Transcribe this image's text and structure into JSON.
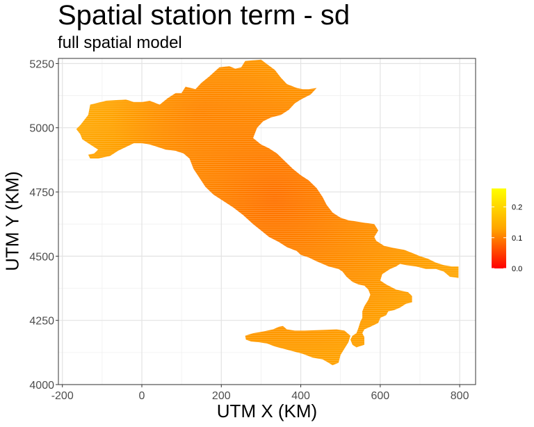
{
  "chart_data": {
    "type": "heatmap",
    "title": "Spatial station term - sd",
    "subtitle": "full spatial model",
    "xlabel": "UTM X (KM)",
    "ylabel": "UTM Y (KM)",
    "xlim": [
      -210,
      840
    ],
    "ylim": [
      4000,
      5270
    ],
    "x_ticks": [
      "-200",
      "0",
      "200",
      "400",
      "600",
      "800"
    ],
    "y_ticks": [
      "4000",
      "4250",
      "4500",
      "4750",
      "5000",
      "5250"
    ],
    "grid": true,
    "legend": {
      "position": "right",
      "range": [
        0,
        0.26
      ],
      "ticks": [
        "0.0",
        "0.1",
        "0.2"
      ],
      "colors": [
        "#ff0000",
        "#ffa500",
        "#ffff00"
      ]
    },
    "regions": [
      {
        "name": "mainland",
        "typical_value": 0.14,
        "outline": [
          [
            -155,
            5010
          ],
          [
            -135,
            5050
          ],
          [
            -130,
            5090
          ],
          [
            -90,
            5105
          ],
          [
            -40,
            5110
          ],
          [
            -20,
            5100
          ],
          [
            0,
            5100
          ],
          [
            20,
            5105
          ],
          [
            45,
            5090
          ],
          [
            65,
            5115
          ],
          [
            85,
            5135
          ],
          [
            100,
            5135
          ],
          [
            110,
            5160
          ],
          [
            135,
            5150
          ],
          [
            150,
            5175
          ],
          [
            170,
            5200
          ],
          [
            195,
            5235
          ],
          [
            220,
            5240
          ],
          [
            235,
            5230
          ],
          [
            250,
            5235
          ],
          [
            260,
            5260
          ],
          [
            300,
            5265
          ],
          [
            335,
            5225
          ],
          [
            350,
            5195
          ],
          [
            365,
            5170
          ],
          [
            390,
            5155
          ],
          [
            405,
            5150
          ],
          [
            420,
            5150
          ],
          [
            440,
            5155
          ],
          [
            425,
            5130
          ],
          [
            400,
            5110
          ],
          [
            385,
            5095
          ],
          [
            370,
            5070
          ],
          [
            350,
            5050
          ],
          [
            325,
            5040
          ],
          [
            305,
            5025
          ],
          [
            290,
            5000
          ],
          [
            280,
            4960
          ],
          [
            300,
            4935
          ],
          [
            320,
            4920
          ],
          [
            340,
            4900
          ],
          [
            360,
            4870
          ],
          [
            380,
            4840
          ],
          [
            400,
            4815
          ],
          [
            420,
            4795
          ],
          [
            440,
            4765
          ],
          [
            455,
            4730
          ],
          [
            465,
            4700
          ],
          [
            480,
            4670
          ],
          [
            500,
            4650
          ],
          [
            520,
            4640
          ],
          [
            540,
            4635
          ],
          [
            560,
            4630
          ],
          [
            585,
            4625
          ],
          [
            595,
            4600
          ],
          [
            585,
            4575
          ],
          [
            590,
            4560
          ],
          [
            610,
            4540
          ],
          [
            640,
            4530
          ],
          [
            660,
            4525
          ],
          [
            685,
            4510
          ],
          [
            700,
            4500
          ],
          [
            720,
            4490
          ],
          [
            740,
            4475
          ],
          [
            760,
            4465
          ],
          [
            780,
            4460
          ],
          [
            797,
            4460
          ],
          [
            797,
            4415
          ],
          [
            775,
            4420
          ],
          [
            760,
            4440
          ],
          [
            740,
            4450
          ],
          [
            715,
            4450
          ],
          [
            690,
            4460
          ],
          [
            665,
            4465
          ],
          [
            650,
            4470
          ],
          [
            640,
            4460
          ],
          [
            625,
            4450
          ],
          [
            605,
            4430
          ],
          [
            600,
            4405
          ],
          [
            615,
            4390
          ],
          [
            640,
            4370
          ],
          [
            670,
            4360
          ],
          [
            680,
            4345
          ],
          [
            680,
            4320
          ],
          [
            665,
            4315
          ],
          [
            650,
            4300
          ],
          [
            635,
            4290
          ],
          [
            620,
            4285
          ],
          [
            615,
            4270
          ],
          [
            600,
            4260
          ],
          [
            595,
            4240
          ],
          [
            575,
            4225
          ],
          [
            560,
            4215
          ],
          [
            555,
            4200
          ],
          [
            560,
            4185
          ],
          [
            560,
            4155
          ],
          [
            540,
            4145
          ],
          [
            530,
            4155
          ],
          [
            525,
            4175
          ],
          [
            530,
            4190
          ],
          [
            540,
            4200
          ],
          [
            545,
            4220
          ],
          [
            550,
            4245
          ],
          [
            555,
            4260
          ],
          [
            555,
            4285
          ],
          [
            560,
            4305
          ],
          [
            570,
            4330
          ],
          [
            575,
            4350
          ],
          [
            570,
            4370
          ],
          [
            560,
            4385
          ],
          [
            545,
            4390
          ],
          [
            530,
            4400
          ],
          [
            515,
            4420
          ],
          [
            505,
            4440
          ],
          [
            495,
            4450
          ],
          [
            470,
            4460
          ],
          [
            455,
            4470
          ],
          [
            440,
            4480
          ],
          [
            420,
            4495
          ],
          [
            400,
            4505
          ],
          [
            390,
            4520
          ],
          [
            365,
            4535
          ],
          [
            345,
            4555
          ],
          [
            320,
            4575
          ],
          [
            300,
            4600
          ],
          [
            280,
            4625
          ],
          [
            255,
            4660
          ],
          [
            230,
            4690
          ],
          [
            200,
            4720
          ],
          [
            180,
            4740
          ],
          [
            160,
            4770
          ],
          [
            145,
            4805
          ],
          [
            130,
            4840
          ],
          [
            120,
            4880
          ],
          [
            105,
            4900
          ],
          [
            85,
            4910
          ],
          [
            60,
            4915
          ],
          [
            40,
            4925
          ],
          [
            20,
            4935
          ],
          [
            0,
            4940
          ],
          [
            -20,
            4940
          ],
          [
            -40,
            4925
          ],
          [
            -60,
            4910
          ],
          [
            -80,
            4890
          ],
          [
            -110,
            4880
          ],
          [
            -130,
            4880
          ],
          [
            -135,
            4895
          ],
          [
            -120,
            4900
          ],
          [
            -110,
            4915
          ],
          [
            -130,
            4935
          ],
          [
            -150,
            4955
          ],
          [
            -155,
            4975
          ],
          [
            -165,
            4995
          ]
        ]
      },
      {
        "name": "island",
        "typical_value": 0.17,
        "outline": [
          [
            260,
            4190
          ],
          [
            280,
            4200
          ],
          [
            300,
            4205
          ],
          [
            330,
            4215
          ],
          [
            345,
            4225
          ],
          [
            355,
            4228
          ],
          [
            365,
            4215
          ],
          [
            385,
            4210
          ],
          [
            410,
            4210
          ],
          [
            440,
            4212
          ],
          [
            465,
            4213
          ],
          [
            490,
            4215
          ],
          [
            510,
            4210
          ],
          [
            525,
            4190
          ],
          [
            520,
            4165
          ],
          [
            510,
            4140
          ],
          [
            500,
            4115
          ],
          [
            495,
            4085
          ],
          [
            480,
            4075
          ],
          [
            470,
            4085
          ],
          [
            455,
            4098
          ],
          [
            430,
            4105
          ],
          [
            405,
            4120
          ],
          [
            380,
            4130
          ],
          [
            355,
            4140
          ],
          [
            335,
            4148
          ],
          [
            315,
            4160
          ],
          [
            295,
            4165
          ],
          [
            275,
            4168
          ],
          [
            262,
            4175
          ]
        ]
      }
    ]
  }
}
